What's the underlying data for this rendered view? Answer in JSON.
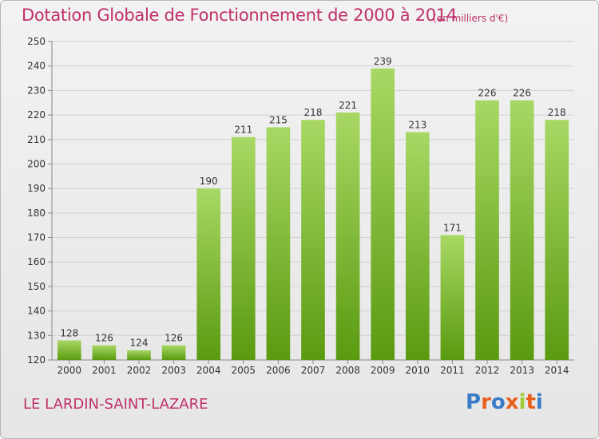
{
  "header": {
    "title": "Dotation Globale de Fonctionnement de 2000 à 2014",
    "unit": "(en milliers d'€)"
  },
  "footer": {
    "commune": "LE LARDIN-SAINT-LAZARE",
    "logo": "Proxiti"
  },
  "colors": {
    "title": "#c0306a",
    "bar_top": "#a8d864",
    "bar_bottom": "#5a9a10",
    "logo_letters": [
      "#3a7cc8",
      "#e8601c",
      "#3a7cc8",
      "#e8601c",
      "#9acd32",
      "#e8601c",
      "#3a7cc8"
    ]
  },
  "chart_data": {
    "type": "bar",
    "title": "Dotation Globale de Fonctionnement de 2000 à 2014",
    "subtitle": "(en milliers d'€)",
    "xlabel": "",
    "ylabel": "",
    "categories": [
      "2000",
      "2001",
      "2002",
      "2003",
      "2004",
      "2005",
      "2006",
      "2007",
      "2008",
      "2009",
      "2010",
      "2011",
      "2012",
      "2013",
      "2014"
    ],
    "values": [
      128,
      126,
      124,
      126,
      190,
      211,
      215,
      218,
      221,
      239,
      213,
      171,
      226,
      226,
      218
    ],
    "ylim": [
      120,
      250
    ],
    "yticks": [
      120,
      130,
      140,
      150,
      160,
      170,
      180,
      190,
      200,
      210,
      220,
      230,
      240,
      250
    ],
    "grid": true,
    "data_labels": true
  }
}
